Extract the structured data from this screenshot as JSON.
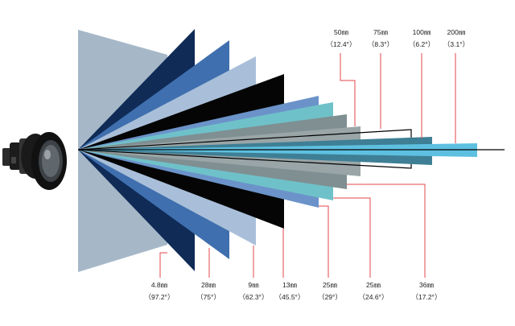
{
  "diagram": {
    "type": "lens-field-of-view-comparison",
    "axis_color": "#000000",
    "leader_color": "#e3474a",
    "lens_icon": "thermal-camera-lens-icon",
    "top_labels": [
      {
        "id": "50mm",
        "focal": "50㎜",
        "angle": "（12.4°）"
      },
      {
        "id": "75mm",
        "focal": "75㎜",
        "angle": "（8.3°）"
      },
      {
        "id": "100mm",
        "focal": "100㎜",
        "angle": "（6.2°）"
      },
      {
        "id": "200mm",
        "focal": "200㎜",
        "angle": "（3.1°）"
      }
    ],
    "bottom_labels": [
      {
        "id": "4.8mm",
        "focal": "4.8㎜",
        "angle": "（97.2°）"
      },
      {
        "id": "28mm",
        "focal": "28㎜",
        "angle": "（75°）"
      },
      {
        "id": "9mm",
        "focal": "9㎜",
        "angle": "（62.3°）"
      },
      {
        "id": "13mm",
        "focal": "13㎜",
        "angle": "（45.5°）"
      },
      {
        "id": "25mm-a",
        "focal": "25㎜",
        "angle": "（29°）"
      },
      {
        "id": "25mm-b",
        "focal": "25㎜",
        "angle": "（24.6°）"
      },
      {
        "id": "36mm",
        "focal": "36㎜",
        "angle": "（17.2°）"
      }
    ]
  }
}
